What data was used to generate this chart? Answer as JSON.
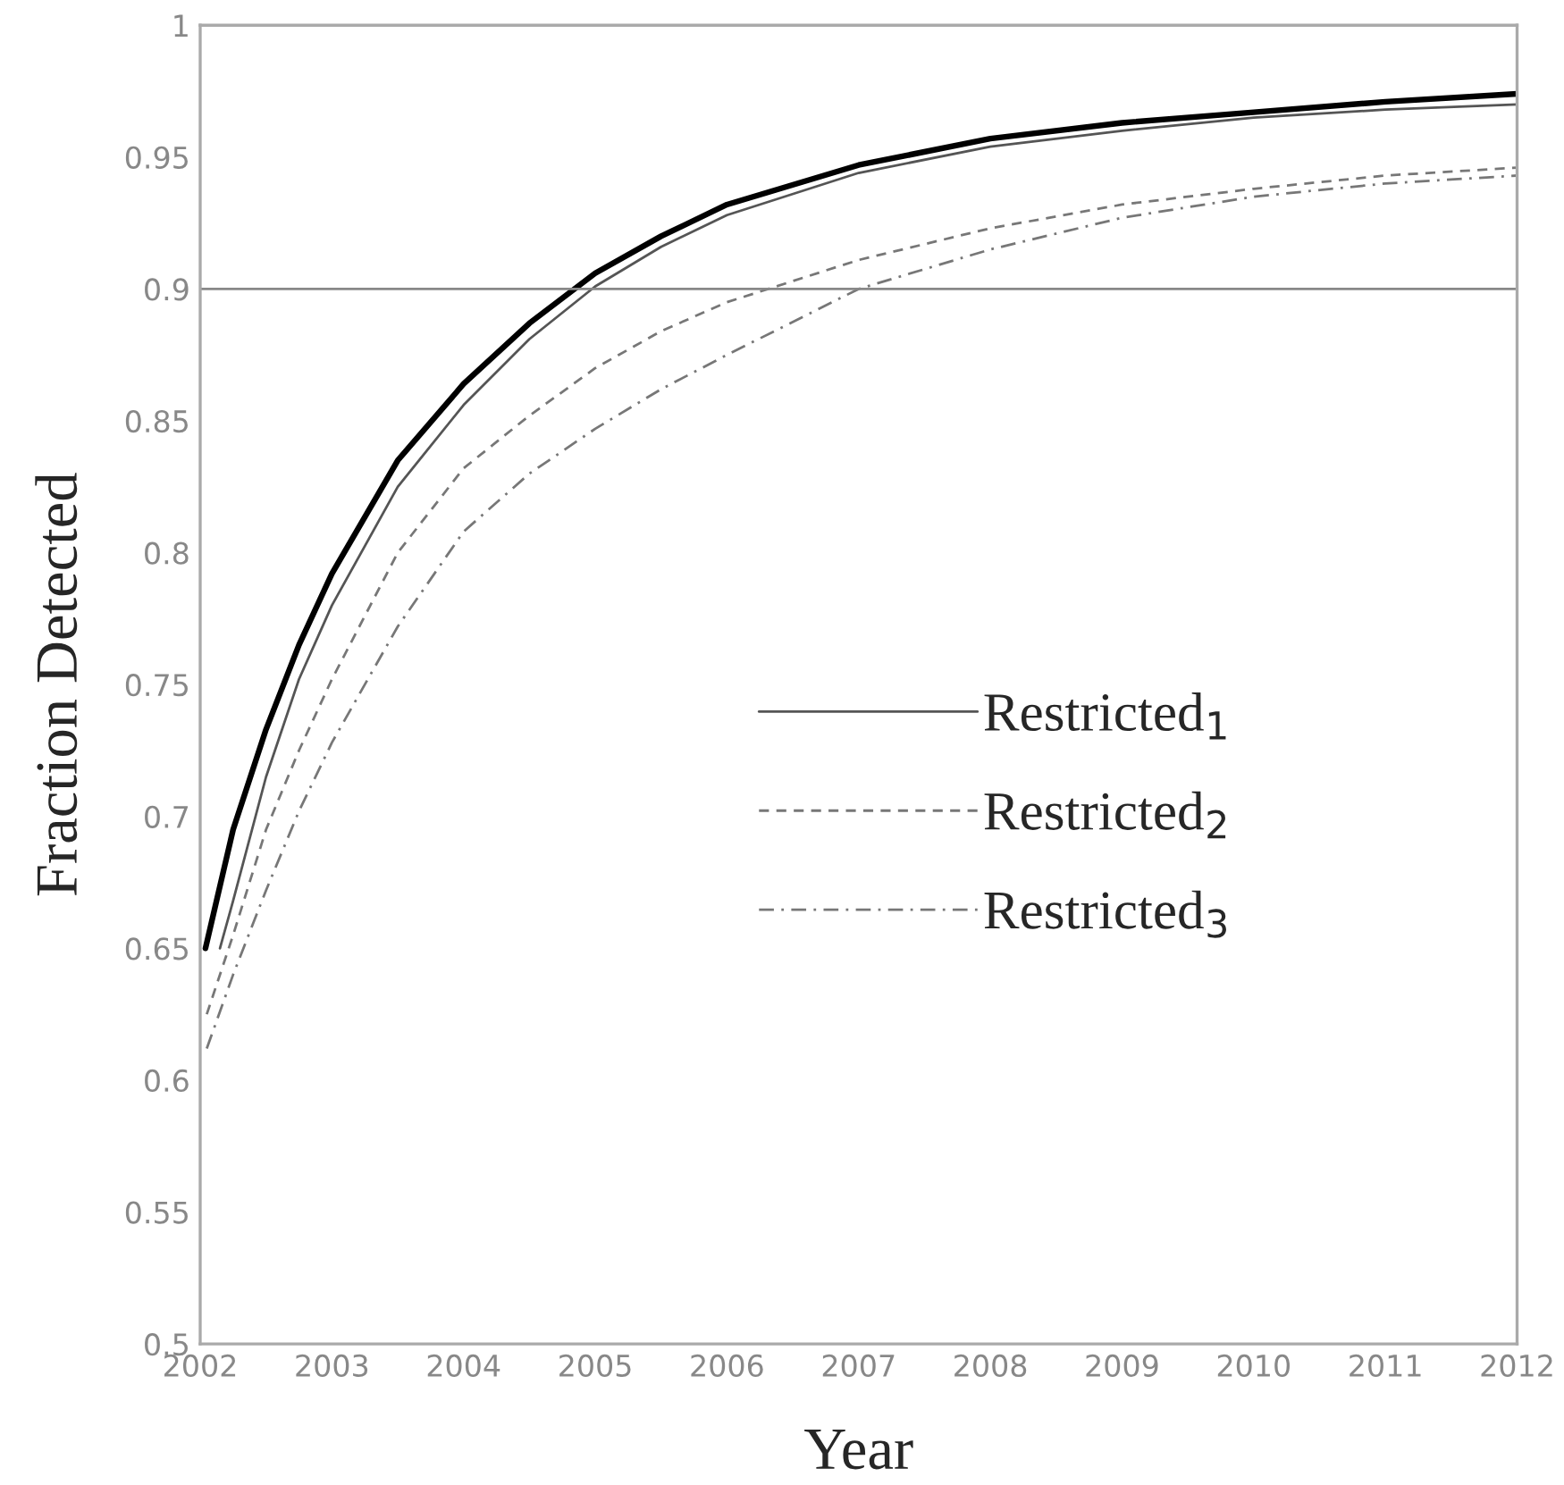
{
  "chart_data": {
    "type": "line",
    "xlabel": "Year",
    "ylabel": "Fraction Detected",
    "xlim": [
      2002,
      2012
    ],
    "ylim": [
      0.5,
      1
    ],
    "xticks": [
      2002,
      2003,
      2004,
      2005,
      2006,
      2007,
      2008,
      2009,
      2010,
      2011,
      2012
    ],
    "yticks": [
      0.5,
      0.55,
      0.6,
      0.65,
      0.7,
      0.75,
      0.8,
      0.85,
      0.9,
      0.95,
      1
    ],
    "grid": false,
    "legend": "right",
    "marker": "none",
    "ref_lines": [
      {
        "axis": "y",
        "value": 0.9,
        "color": "#888888"
      }
    ],
    "series": [
      {
        "color": "#000000",
        "line_style": "solid",
        "x": [
          2002.04,
          2002.25,
          2002.5,
          2002.75,
          2003,
          2003.5,
          2004,
          2004.5,
          2005,
          2005.5,
          2006,
          2007,
          2008,
          2009,
          2010,
          2011,
          2012
        ],
        "values": [
          0.65,
          0.695,
          0.733,
          0.765,
          0.792,
          0.835,
          0.864,
          0.887,
          0.906,
          0.92,
          0.932,
          0.947,
          0.957,
          0.963,
          0.967,
          0.971,
          0.974
        ]
      },
      {
        "name": "Restricted$_{1}$",
        "color": "#555555",
        "line_style": "solid",
        "x": [
          2002.15,
          2002.25,
          2002.5,
          2002.75,
          2003,
          2003.5,
          2004,
          2004.5,
          2005,
          2005.5,
          2006,
          2007,
          2008,
          2009,
          2010,
          2011,
          2012
        ],
        "values": [
          0.65,
          0.668,
          0.715,
          0.752,
          0.78,
          0.825,
          0.856,
          0.881,
          0.901,
          0.916,
          0.928,
          0.944,
          0.954,
          0.96,
          0.965,
          0.968,
          0.97
        ]
      },
      {
        "name": "Restricted$_{2}$",
        "color": "#777777",
        "line_style": "dashed",
        "x": [
          2002.05,
          2002.25,
          2002.5,
          2002.75,
          2003,
          2003.5,
          2004,
          2004.5,
          2005,
          2005.5,
          2006,
          2007,
          2008,
          2009,
          2010,
          2011,
          2012
        ],
        "values": [
          0.625,
          0.655,
          0.695,
          0.725,
          0.752,
          0.8,
          0.832,
          0.852,
          0.87,
          0.884,
          0.895,
          0.911,
          0.923,
          0.932,
          0.938,
          0.943,
          0.946
        ]
      },
      {
        "name": "Restricted$_{3}$",
        "color": "#777777",
        "line_style": "dashdot",
        "x": [
          2002.05,
          2002.25,
          2002.5,
          2002.75,
          2003,
          2003.5,
          2004,
          2004.5,
          2005,
          2005.5,
          2006,
          2007,
          2008,
          2009,
          2010,
          2011,
          2012
        ],
        "values": [
          0.612,
          0.64,
          0.672,
          0.702,
          0.728,
          0.772,
          0.808,
          0.83,
          0.847,
          0.862,
          0.875,
          0.9,
          0.915,
          0.927,
          0.935,
          0.94,
          0.943
        ]
      }
    ]
  }
}
